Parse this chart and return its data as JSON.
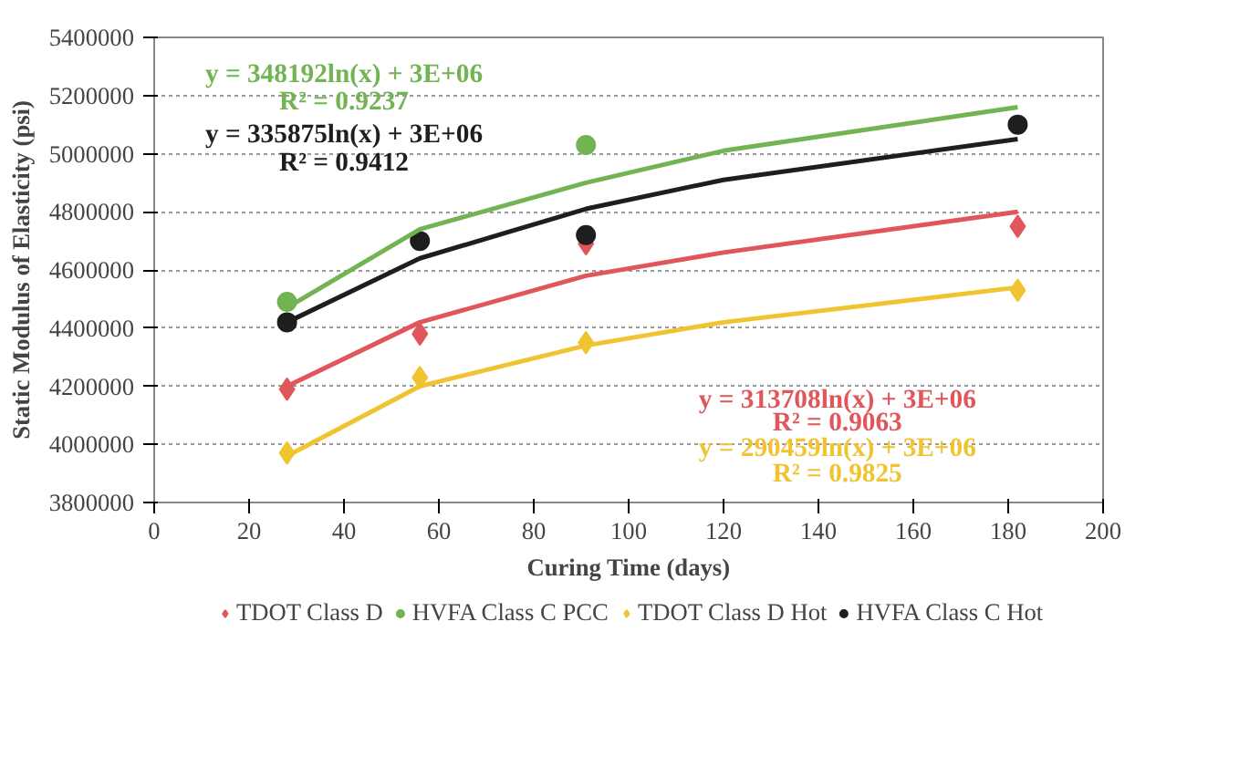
{
  "chart_data": {
    "type": "scatter",
    "xlabel": "Curing Time (days)",
    "ylabel": "Static Modulus of Elasticity (psi)",
    "xlim": [
      0,
      200
    ],
    "xticks": [
      0,
      20,
      40,
      60,
      80,
      100,
      120,
      140,
      160,
      180,
      200
    ],
    "ylim": [
      3800000,
      5400000
    ],
    "yticks": [
      3800000,
      4000000,
      4200000,
      4400000,
      4600000,
      4800000,
      5000000,
      5200000,
      5400000
    ],
    "grid": "y",
    "legend": "bottom",
    "x": [
      28,
      56,
      91,
      182
    ],
    "series": [
      {
        "name": "TDOT Class D",
        "color": "#e0565b",
        "marker": "diamond",
        "values": [
          4190000,
          4380000,
          4690000,
          4750000
        ]
      },
      {
        "name": "HVFA Class C PCC",
        "color": "#72b352",
        "marker": "circle",
        "values": [
          4490000,
          null,
          5030000,
          null
        ]
      },
      {
        "name": "TDOT Class D Hot",
        "color": "#f0c430",
        "marker": "diamond",
        "values": [
          3970000,
          4230000,
          4350000,
          4530000
        ]
      },
      {
        "name": "HVFA Class C Hot",
        "color": "#1e1e1e",
        "marker": "circle",
        "values": [
          4420000,
          4700000,
          4720000,
          5100000
        ]
      },
      {
        "type": "line",
        "color": "#72b352",
        "x": [
          28,
          56,
          91,
          120,
          182
        ],
        "values": [
          4470000,
          4740000,
          4900000,
          5010000,
          5160000
        ]
      },
      {
        "type": "line",
        "color": "#1e1e1e",
        "x": [
          28,
          56,
          91,
          120,
          182
        ],
        "values": [
          4420000,
          4640000,
          4810000,
          4910000,
          5050000
        ]
      },
      {
        "type": "line",
        "color": "#e0565b",
        "x": [
          28,
          56,
          91,
          120,
          182
        ],
        "values": [
          4200000,
          4420000,
          4580000,
          4660000,
          4800000
        ]
      },
      {
        "type": "line",
        "color": "#f0c430",
        "x": [
          28,
          56,
          91,
          120,
          182
        ],
        "values": [
          3960000,
          4200000,
          4340000,
          4420000,
          4540000
        ]
      }
    ],
    "annotations": [
      "y = 348192ln(x) + 3E+06",
      "R² = 0.9237",
      "y = 335875ln(x) + 3E+06",
      "R² = 0.9412",
      "y = 313708ln(x) + 3E+06",
      "R² = 0.9063",
      "y = 290459ln(x) + 3E+06",
      "R² = 0.9825"
    ]
  }
}
